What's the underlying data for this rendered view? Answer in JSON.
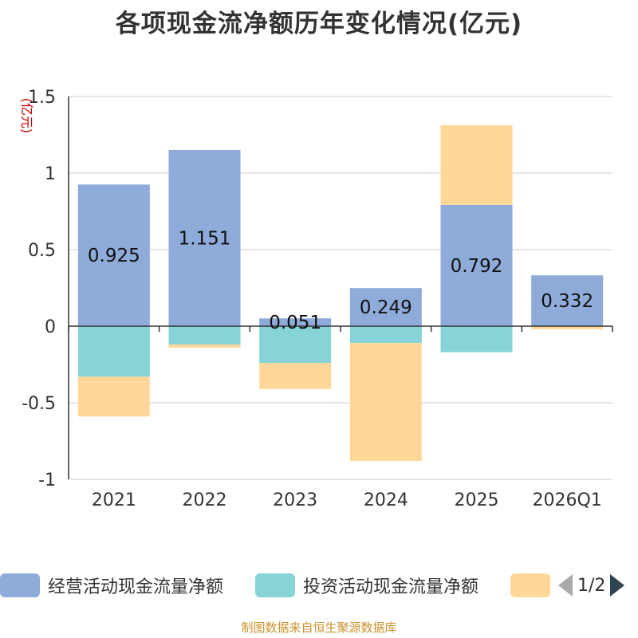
{
  "title": "各项现金流净额历年变化情况(亿元)",
  "footer": "制图数据来自恒生聚源数据库",
  "pager": {
    "text": "1/2"
  },
  "chart_data": {
    "type": "bar",
    "stacked": true,
    "ylabel": "(亿元)",
    "ylim": [
      -1,
      1.5
    ],
    "yticks": [
      "-1",
      "-0.5",
      "0",
      "0.5",
      "1",
      "1.5"
    ],
    "categories": [
      "2021",
      "2022",
      "2023",
      "2024",
      "2025",
      "2026Q1"
    ],
    "grid": true,
    "legend_position": "bottom",
    "series": [
      {
        "name": "经营活动现金流量净额",
        "color": "#8eabd9",
        "values": [
          0.925,
          1.151,
          0.051,
          0.249,
          0.792,
          0.332
        ],
        "labels": [
          "0.925",
          "1.151",
          "0.051",
          "0.249",
          "0.792",
          "0.332"
        ]
      },
      {
        "name": "投资活动现金流量净额",
        "color": "#87d4d6",
        "values": [
          -0.33,
          -0.12,
          -0.24,
          -0.11,
          -0.17,
          0
        ]
      },
      {
        "name": "",
        "color": "#ffd899",
        "values": [
          -0.26,
          -0.02,
          -0.17,
          -0.77,
          0.52,
          -0.02
        ]
      }
    ]
  }
}
